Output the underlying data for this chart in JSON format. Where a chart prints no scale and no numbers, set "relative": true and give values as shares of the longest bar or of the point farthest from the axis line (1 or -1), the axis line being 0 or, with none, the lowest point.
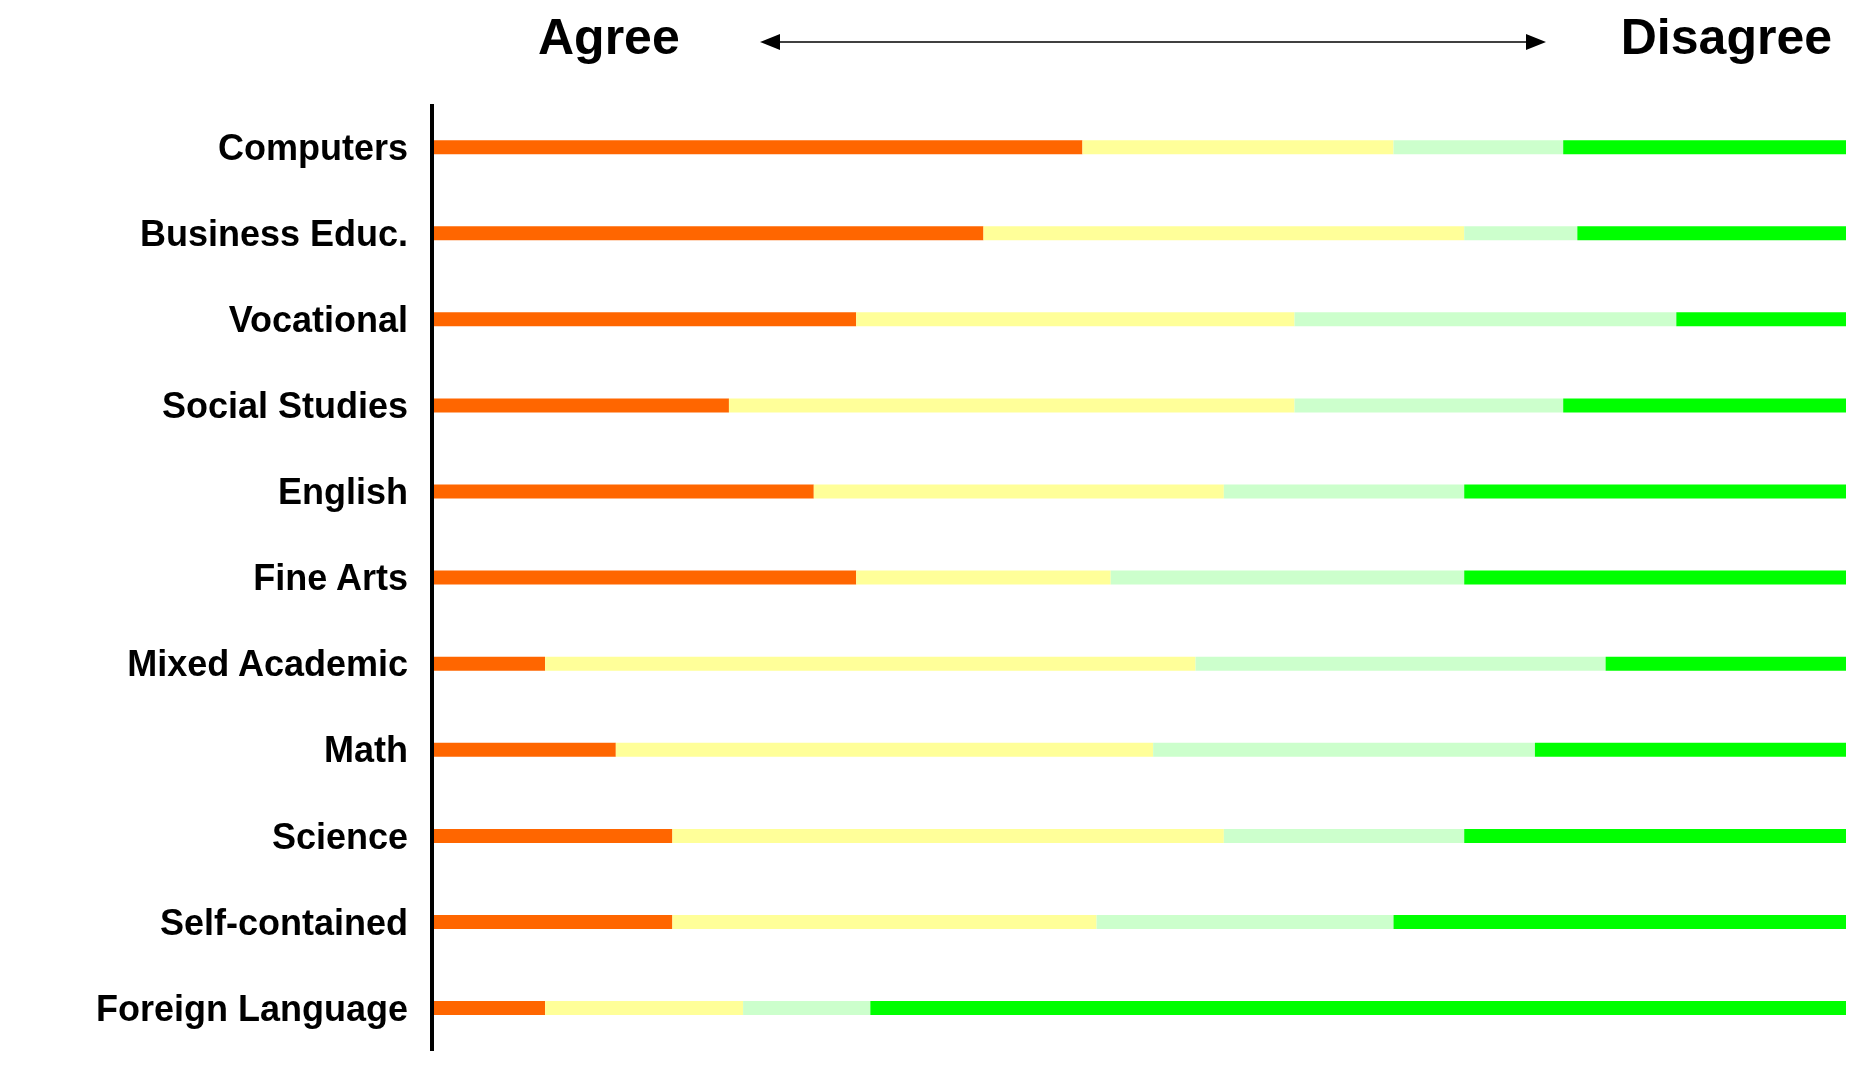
{
  "chart_data": {
    "type": "bar",
    "orientation": "horizontal",
    "stacked": true,
    "relative": true,
    "annotations": [
      "Agree",
      "Disagree"
    ],
    "categories": [
      "Computers",
      "Business Educ.",
      "Vocational",
      "Social Studies",
      "English",
      "Fine Arts",
      "Mixed Academic",
      "Math",
      "Science ",
      "Self-contained",
      "Foreign Language"
    ],
    "series": [
      {
        "color": "#ff6600",
        "values": [
          0.46,
          0.39,
          0.3,
          0.21,
          0.27,
          0.3,
          0.08,
          0.13,
          0.17,
          0.17,
          0.08
        ]
      },
      {
        "color": "#ffff99",
        "values": [
          0.22,
          0.34,
          0.31,
          0.4,
          0.29,
          0.18,
          0.46,
          0.38,
          0.39,
          0.3,
          0.14
        ]
      },
      {
        "color": "#ccffcc",
        "values": [
          0.12,
          0.08,
          0.27,
          0.19,
          0.17,
          0.25,
          0.29,
          0.27,
          0.17,
          0.21,
          0.09
        ]
      },
      {
        "color": "#00ff00",
        "values": [
          0.2,
          0.19,
          0.12,
          0.2,
          0.27,
          0.27,
          0.17,
          0.22,
          0.27,
          0.32,
          0.69
        ]
      }
    ]
  }
}
